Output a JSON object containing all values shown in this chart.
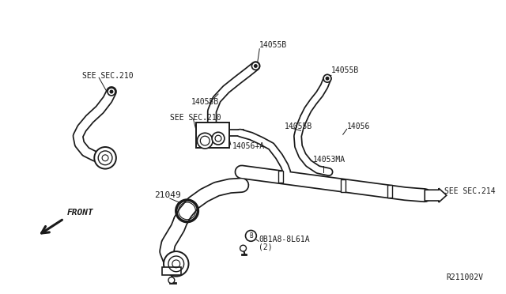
{
  "bg_color": "#ffffff",
  "line_color": "#1a1a1a",
  "text_color": "#1a1a1a",
  "diagram_ref": "R211002V",
  "front_label": "FRONT",
  "labels": {
    "14055B_top": "14055B",
    "14055B_mid_left": "14055B",
    "14055B_right_top": "14055B",
    "14055B_right_mid": "14055B",
    "14056": "14056",
    "14056A": "14056+A",
    "14053MA": "14053MA",
    "21049": "21049",
    "0B1A8": "0B1A8-8L61A",
    "0B1A8_sub": "(2)",
    "see_sec210_left": "SEE SEC.210",
    "see_sec210_mid": "SEE SEC.210",
    "see_sec214": "SEE SEC.214"
  },
  "font_size_labels": 7,
  "font_size_ref": 7,
  "font_size_front": 8
}
